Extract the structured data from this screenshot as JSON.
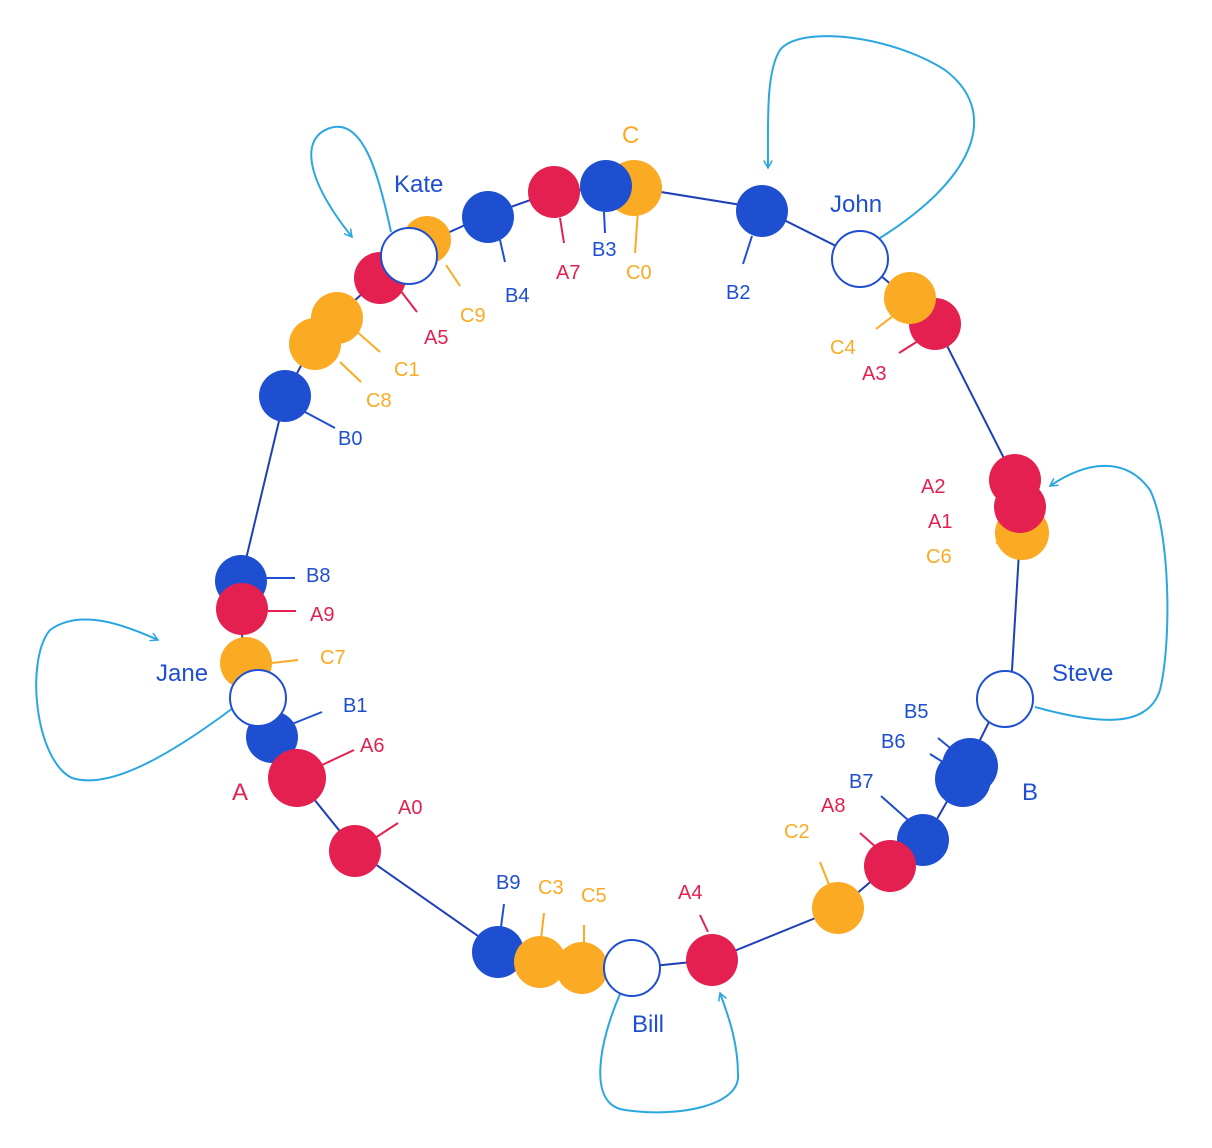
{
  "colors": {
    "A": "#e3204f",
    "B": "#1f4fd1",
    "C": "#fbaa23",
    "ring": "#1f3fb8",
    "arrow": "#2aa7e0",
    "node_stroke": "#1f4fd1",
    "node_fill": "#ffffff"
  },
  "group_labels": {
    "A": "A",
    "B": "B",
    "C": "C"
  },
  "servers": [
    "Kate",
    "John",
    "Steve",
    "Bill",
    "Jane"
  ],
  "keys": {
    "A": [
      "A0",
      "A1",
      "A2",
      "A3",
      "A4",
      "A5",
      "A6",
      "A7",
      "A8",
      "A9"
    ],
    "B": [
      "B0",
      "B1",
      "B2",
      "B3",
      "B4",
      "B5",
      "B6",
      "B7",
      "B8",
      "B9"
    ],
    "C": [
      "C0",
      "C1",
      "C2",
      "C3",
      "C4",
      "C5",
      "C6",
      "C7",
      "C8",
      "C9"
    ]
  }
}
